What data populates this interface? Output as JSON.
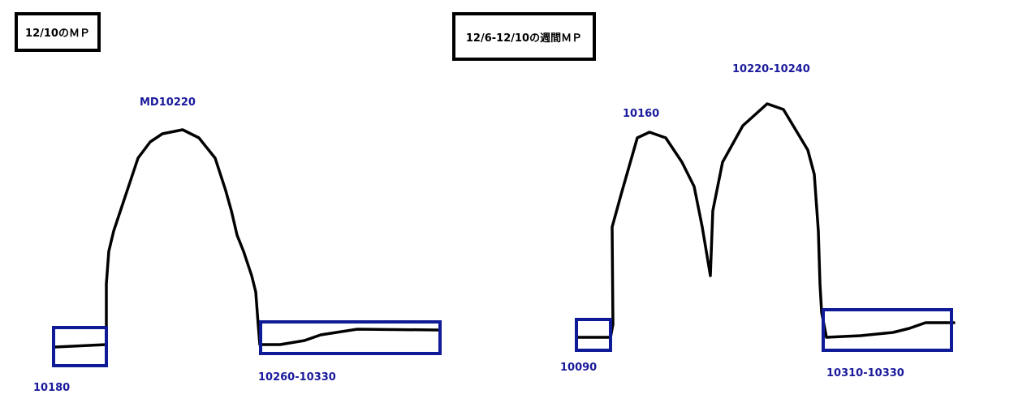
{
  "colors": {
    "curve": "#000000",
    "box": "#0f1a96",
    "label": "#1a1a9c"
  },
  "left_panel": {
    "title": "12/10のＭＰ",
    "peak_label": "MD10220",
    "low_label": "10180",
    "tail_label": "10260-10330"
  },
  "right_panel": {
    "title": "12/6-12/10の週間ＭＰ",
    "peak1_label": "10160",
    "peak2_label": "10220-10240",
    "low_label": "10090",
    "tail_label": "10310-10330"
  }
}
